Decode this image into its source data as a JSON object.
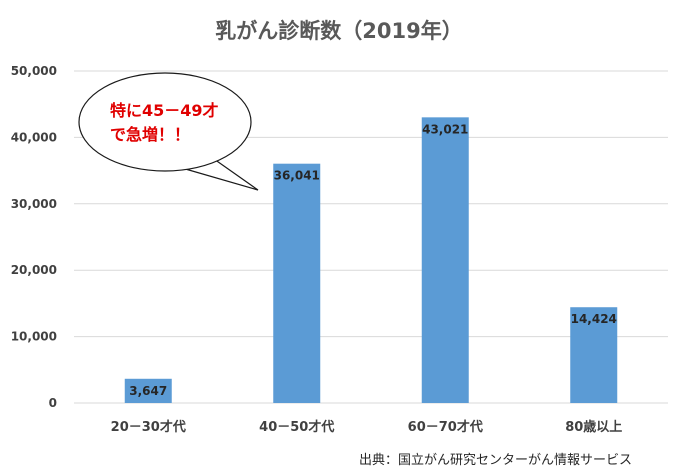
{
  "chart_data": {
    "type": "bar",
    "title": "乳がん診断数（2019年）",
    "categories": [
      "20－30才代",
      "40－50才代",
      "60－70才代",
      "80歳以上"
    ],
    "values": [
      3647,
      36041,
      43021,
      14424
    ],
    "value_labels": [
      "3,647",
      "36,041",
      "43,021",
      "14,424"
    ],
    "yticks": [
      0,
      10000,
      20000,
      30000,
      40000,
      50000
    ],
    "ytick_labels": [
      "0",
      "10,000",
      "20,000",
      "30,000",
      "40,000",
      "50,000"
    ],
    "ylim": [
      0,
      50000
    ],
    "grid": true,
    "bar_color": "#5b9bd5",
    "annotation": {
      "line1": "特に45－49才",
      "line2": "で急増！！",
      "color": "#e00000"
    },
    "source": "出典：国立がん研究センターがん情報サービス"
  }
}
